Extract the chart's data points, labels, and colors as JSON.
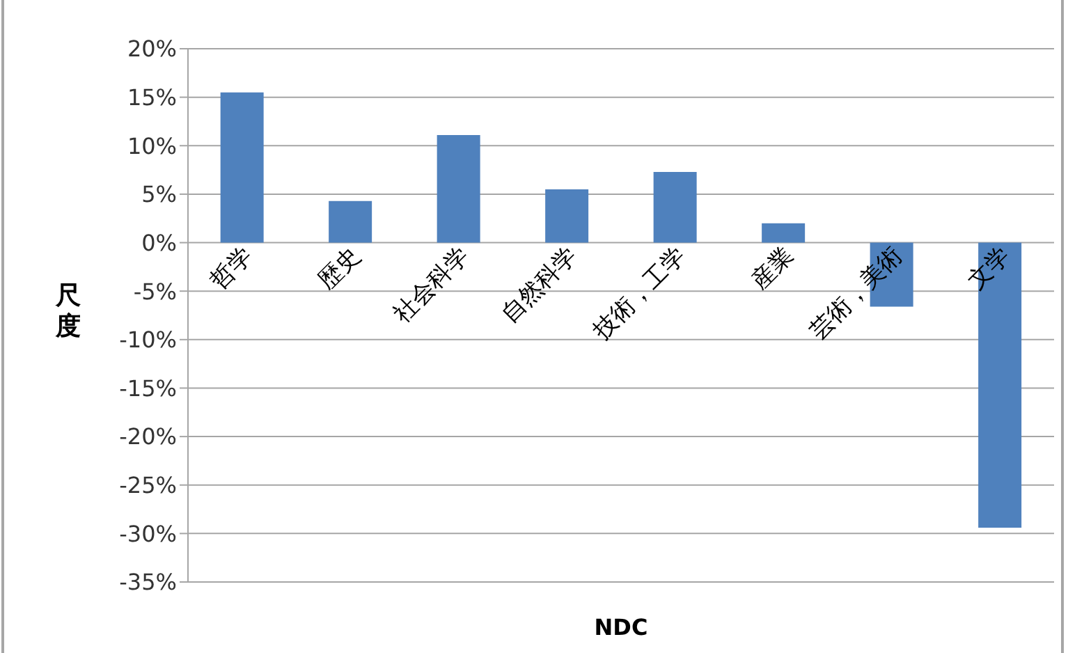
{
  "chart_data": {
    "type": "bar",
    "xlabel": "NDC",
    "ylabel": "尺度",
    "categories": [
      "哲学",
      "歴史",
      "社会科学",
      "自然科学",
      "技術，工学",
      "産業",
      "芸術，美術",
      "文学"
    ],
    "values": [
      15.5,
      4.3,
      11.1,
      5.5,
      7.3,
      2.0,
      -6.6,
      -29.4
    ],
    "color": "#4f81bd",
    "ylim": [
      -35,
      20
    ],
    "yticks": [
      {
        "value": -35,
        "label": "-35%"
      },
      {
        "value": -30,
        "label": "-30%"
      },
      {
        "value": -25,
        "label": "-25%"
      },
      {
        "value": -20,
        "label": "-20%"
      },
      {
        "value": -15,
        "label": "-15%"
      },
      {
        "value": -10,
        "label": "-10%"
      },
      {
        "value": -5,
        "label": "-5%"
      },
      {
        "value": 0,
        "label": "0%"
      },
      {
        "value": 5,
        "label": "5%"
      },
      {
        "value": 10,
        "label": "10%"
      },
      {
        "value": 15,
        "label": "15%"
      },
      {
        "value": 20,
        "label": "20%"
      }
    ],
    "grid": "y"
  }
}
